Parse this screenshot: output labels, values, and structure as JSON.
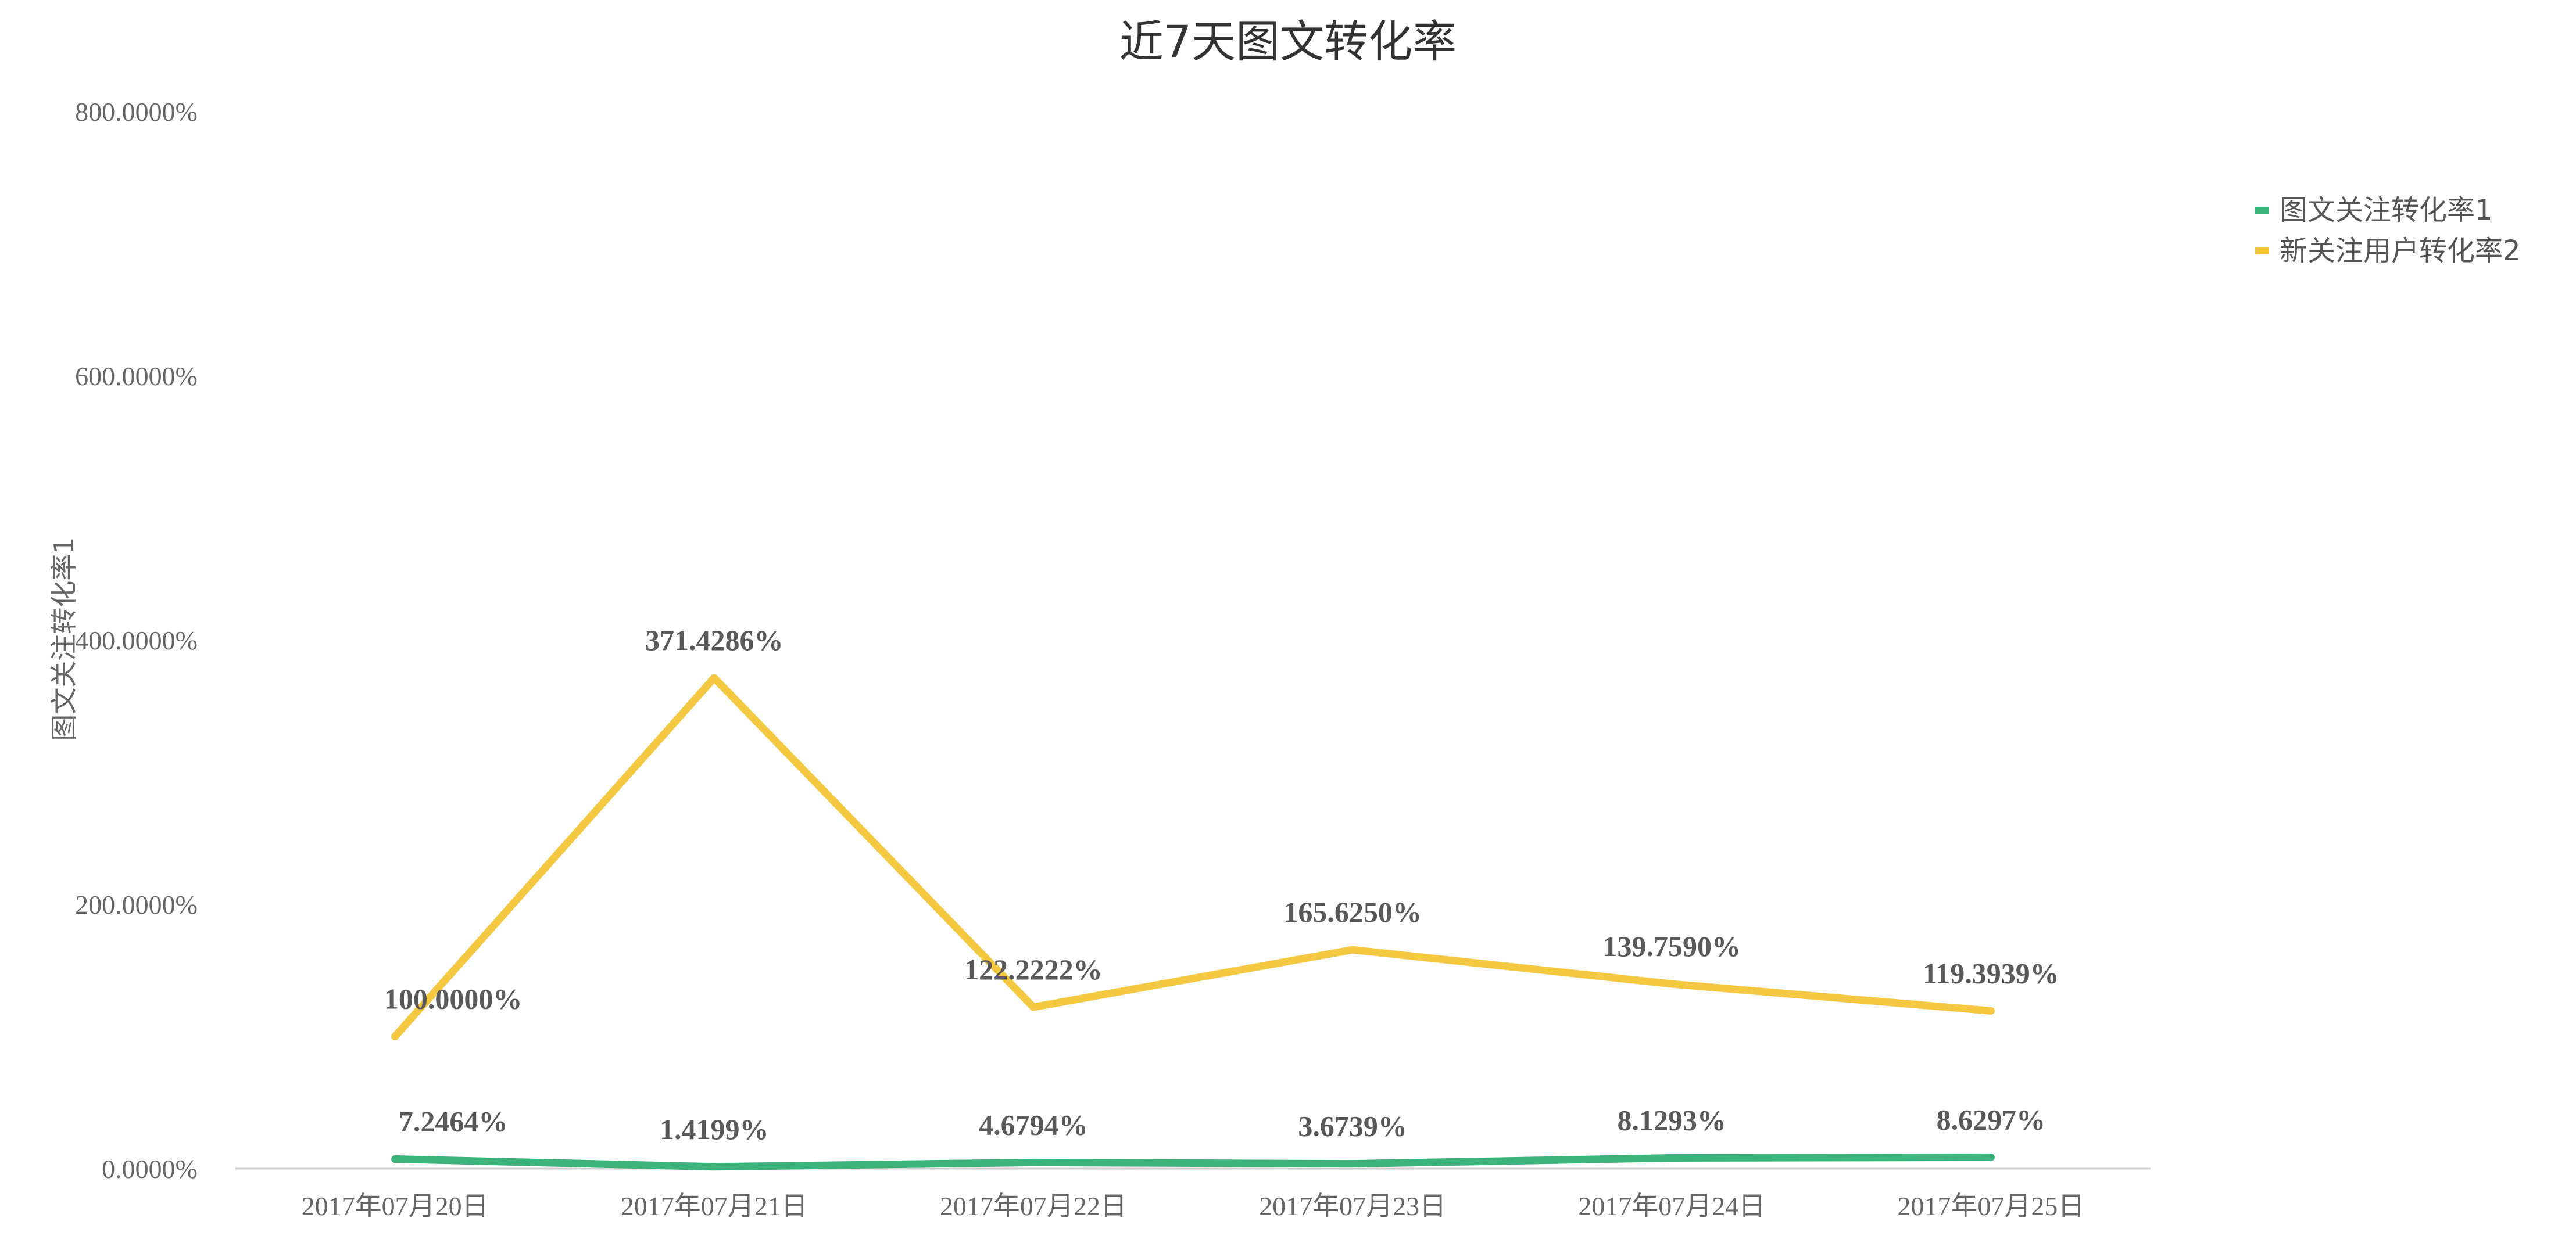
{
  "chart_data": {
    "type": "line",
    "title": "近7天图文转化率",
    "ylabel": "图文关注转化率1",
    "xlabel": "",
    "ylim": [
      0,
      800
    ],
    "yticks": [
      "0.0000%",
      "200.0000%",
      "400.0000%",
      "600.0000%",
      "800.0000%"
    ],
    "ytick_values": [
      0,
      200,
      400,
      600,
      800
    ],
    "categories": [
      "2017年07月20日",
      "2017年07月21日",
      "2017年07月22日",
      "2017年07月23日",
      "2017年07月24日",
      "2017年07月25日"
    ],
    "series": [
      {
        "name": "图文关注转化率1",
        "color": "#3cb37a",
        "values": [
          7.2464,
          1.4199,
          4.6794,
          3.6739,
          8.1293,
          8.6297
        ],
        "labels": [
          "7.2464%",
          "1.4199%",
          "4.6794%",
          "3.6739%",
          "8.1293%",
          "8.6297%"
        ]
      },
      {
        "name": "新关注用户转化率2",
        "color": "#f5c842",
        "values": [
          100.0,
          371.4286,
          122.2222,
          165.625,
          139.759,
          119.3939
        ],
        "labels": [
          "100.0000%",
          "371.4286%",
          "122.2222%",
          "165.6250%",
          "139.7590%",
          "119.3939%"
        ]
      }
    ],
    "legend_position": "top-right",
    "grid": false
  }
}
